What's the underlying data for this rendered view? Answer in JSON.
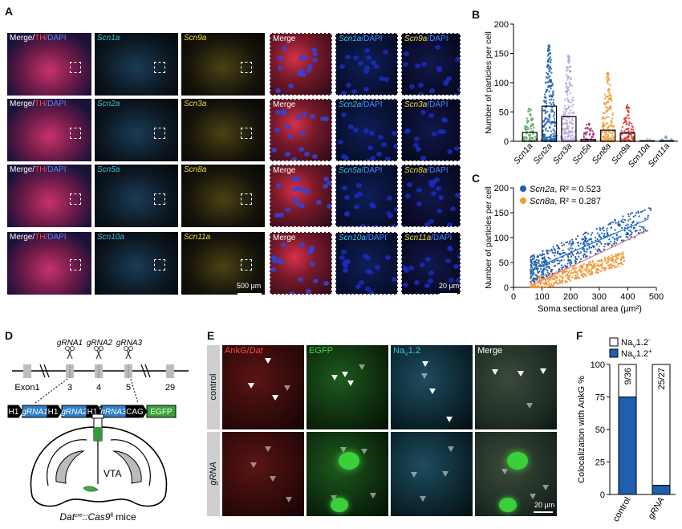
{
  "panels": {
    "A": "A",
    "B": "B",
    "C": "C",
    "D": "D",
    "E": "E",
    "F": "F"
  },
  "panelA": {
    "rows": [
      {
        "c1": [
          "Merge/",
          "TH",
          "/DAPI"
        ],
        "c2": "Scn1a",
        "c3": "Scn9a",
        "c4": "Merge",
        "c5": [
          "Scn1a",
          "/DAPI"
        ],
        "c6": [
          "Scn9a",
          "/DAPI"
        ]
      },
      {
        "c1": [
          "Merge/",
          "TH",
          "/DAPI"
        ],
        "c2": "Scn2a",
        "c3": "Scn3a",
        "c4": "Merge",
        "c5": [
          "Scn2a",
          "/DAPI"
        ],
        "c6": [
          "Scn3a",
          "/DAPI"
        ]
      },
      {
        "c1": [
          "Merge/",
          "TH",
          "/DAPI"
        ],
        "c2": "Scn5a",
        "c3": "Scn8a",
        "c4": "Merge",
        "c5": [
          "Scn5a",
          "/DAPI"
        ],
        "c6": [
          "Scn8a",
          "/DAPI"
        ]
      },
      {
        "c1": [
          "Merge/",
          "TH",
          "/DAPI"
        ],
        "c2": "Scn10a",
        "c3": "Scn11a",
        "c4": "Merge",
        "c5": [
          "Scn10a",
          "/DAPI"
        ],
        "c6": [
          "Scn11a",
          "/DAPI"
        ]
      }
    ],
    "scalebar_left": "500 µm",
    "scalebar_right": "20 µm"
  },
  "chart_data": [
    {
      "type": "bar",
      "panel": "B",
      "ylabel": "Number of particles per cell",
      "ylim": [
        0,
        200
      ],
      "yticks": [
        "0",
        "50",
        "100",
        "150",
        "200"
      ],
      "categories": [
        "Scn1a",
        "Scn2a",
        "Scn3a",
        "Scn5a",
        "Scn8a",
        "Scn9a",
        "Scn10a",
        "Scn11a"
      ],
      "values": [
        15,
        60,
        42,
        3,
        19,
        14,
        1,
        1
      ],
      "point_max": [
        57,
        167,
        147,
        33,
        118,
        64,
        6,
        9
      ],
      "colors": [
        "#5aa06a",
        "#1f5fb0",
        "#b9a7d8",
        "#a0286e",
        "#ee9a3a",
        "#d8352a",
        "#c8c8c8",
        "#5b9bd5"
      ]
    },
    {
      "type": "scatter",
      "panel": "C",
      "xlabel": "Soma sectional area (µm²)",
      "ylabel": "Number of particles per cell",
      "xlim": [
        0,
        500
      ],
      "ylim": [
        0,
        200
      ],
      "xticks": [
        "0",
        "100",
        "200",
        "300",
        "400",
        "500"
      ],
      "yticks": [
        "0",
        "50",
        "100",
        "150",
        "200"
      ],
      "series": [
        {
          "name": "Scn2a",
          "r2_label": ", R² = 0.523",
          "color": "#1f5fb0",
          "fit": [
            [
              60,
              35
            ],
            [
              470,
              137
            ]
          ]
        },
        {
          "name": "Scn8a",
          "r2_label": ", R² = 0.287",
          "color": "#ee9a3a",
          "fit": [
            [
              60,
              3
            ],
            [
              470,
              115
            ]
          ]
        }
      ]
    },
    {
      "type": "bar",
      "panel": "F",
      "ylabel": "Colocalization with AnkG %",
      "ylim": [
        0,
        100
      ],
      "categories": [
        "control",
        "gRNA"
      ],
      "stacked": [
        {
          "positive": 75,
          "negative": 25,
          "label": "9/36"
        },
        {
          "positive": 7,
          "negative": 93,
          "label": "25/27"
        }
      ],
      "legend": [
        "NaV1.2-",
        "NaV1.2+"
      ]
    }
  ],
  "panelD": {
    "grnas": [
      "gRNA1",
      "gRNA2",
      "gRNA3"
    ],
    "exons": [
      "Exon1",
      "3",
      "4",
      "5",
      "29"
    ],
    "cassette": [
      "H1",
      "gRNA1",
      "H1",
      "gRNA2",
      "H1",
      "gRNA3",
      "CAG",
      "EGFP"
    ],
    "brain_label": "VTA",
    "mouse_label": [
      "Dat",
      "cre",
      "::Cas9",
      "fl",
      " mice"
    ]
  },
  "panelE": {
    "headers": [
      [
        "AnkG/",
        "Dat"
      ],
      "EGFP",
      [
        "Na",
        "V",
        "1.2"
      ],
      "Merge"
    ],
    "rows": [
      "control",
      "gRNA"
    ],
    "scalebar": "20 µm"
  },
  "panelF": {
    "ylabel": "Colocalization with AnkG %",
    "yticks": [
      "0",
      "25",
      "50",
      "75",
      "100"
    ],
    "legend_neg": [
      "Na",
      "V",
      "1.2",
      "-"
    ],
    "legend_pos": [
      "Na",
      "V",
      "1.2",
      "+"
    ]
  }
}
